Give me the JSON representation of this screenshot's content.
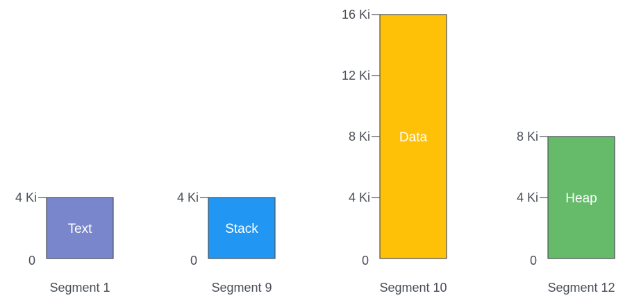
{
  "segments": [
    {
      "name": "Segment 1",
      "block_label": "Text",
      "size_ki": 4,
      "color": "#7986CB",
      "ticks": [
        {
          "label": "0",
          "value_ki": 0,
          "marker": false
        },
        {
          "label": "4 Ki",
          "value_ki": 4,
          "marker": true
        }
      ]
    },
    {
      "name": "Segment 9",
      "block_label": "Stack",
      "size_ki": 4,
      "color": "#2196F3",
      "ticks": [
        {
          "label": "0",
          "value_ki": 0,
          "marker": false
        },
        {
          "label": "4 Ki",
          "value_ki": 4,
          "marker": true
        }
      ]
    },
    {
      "name": "Segment 10",
      "block_label": "Data",
      "size_ki": 16,
      "color": "#FFC107",
      "ticks": [
        {
          "label": "0",
          "value_ki": 0,
          "marker": false
        },
        {
          "label": "4 Ki",
          "value_ki": 4,
          "marker": true
        },
        {
          "label": "8 Ki",
          "value_ki": 8,
          "marker": true
        },
        {
          "label": "12 Ki",
          "value_ki": 12,
          "marker": true
        },
        {
          "label": "16 Ki",
          "value_ki": 16,
          "marker": true
        }
      ]
    },
    {
      "name": "Segment 12",
      "block_label": "Heap",
      "size_ki": 8,
      "color": "#66BB6A",
      "ticks": [
        {
          "label": "0",
          "value_ki": 0,
          "marker": false
        },
        {
          "label": "4 Ki",
          "value_ki": 4,
          "marker": true
        },
        {
          "label": "8 Ki",
          "value_ki": 8,
          "marker": true
        }
      ]
    }
  ],
  "colors": {
    "outline": "#4a4f57",
    "text": "#4a4f57",
    "block_text": "#ffffff"
  }
}
